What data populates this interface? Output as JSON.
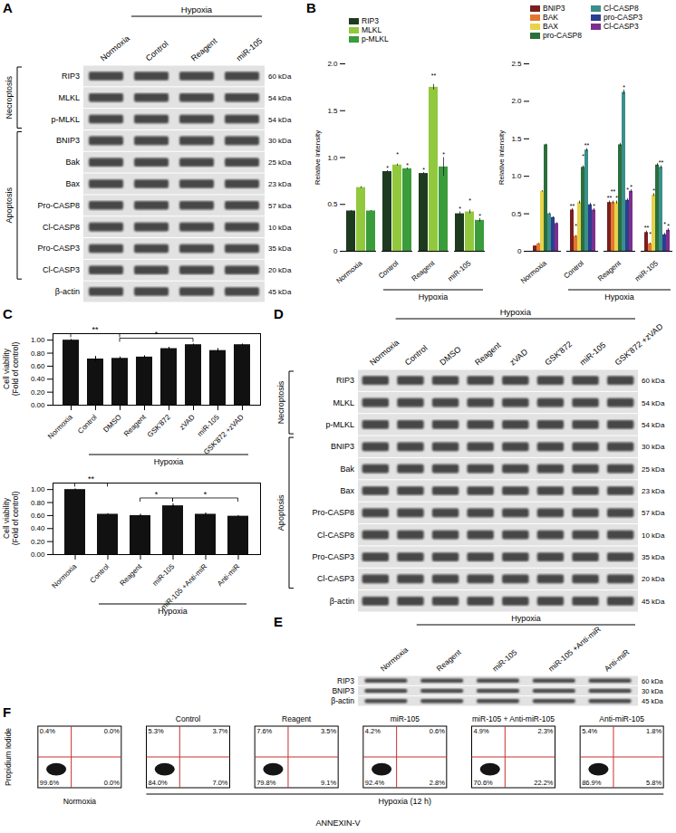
{
  "chart_data": [
    {
      "panel": "B",
      "type": "bar",
      "y_label": "Relative intensity",
      "legend": "top-left",
      "categories": [
        "Normoxia",
        "Control",
        "Reagent",
        "miR-105"
      ],
      "group": {
        "label": "Hypoxia",
        "from": "Control",
        "to": "miR-105"
      },
      "ylim": [
        0,
        2
      ],
      "yticks": [
        0,
        0.5,
        {
          "value": 1,
          "label": "1.0"
        },
        1.5,
        {
          "value": 2,
          "label": "2.0"
        }
      ],
      "series": [
        {
          "name": "RIP3",
          "color": "#1e3b20",
          "values": [
            0.43,
            0.85,
            0.83,
            0.4
          ],
          "errors": [
            0.005,
            0.01,
            0.01,
            0.02
          ],
          "significance": [
            null,
            "*",
            "*",
            "*"
          ]
        },
        {
          "name": "MLKL",
          "color": "#92c83e",
          "values": [
            0.68,
            0.92,
            1.75,
            0.42
          ],
          "errors": [
            0.01,
            0.01,
            0.03,
            0.02
          ],
          "significance": [
            null,
            "*",
            "**",
            "*"
          ]
        },
        {
          "name": "p-MLKL",
          "color": "#3a9c3a",
          "values": [
            0.43,
            0.88,
            0.9,
            0.33
          ],
          "errors": [
            0.005,
            0.01,
            0.1,
            0.02
          ],
          "significance": [
            null,
            "*",
            "*",
            "*"
          ]
        }
      ]
    },
    {
      "type": "bar",
      "y_label": "Relative intensity",
      "legend": "top-left",
      "categories": [
        "Normoxia",
        "Control",
        "Reagent",
        "miR-105"
      ],
      "group": {
        "label": "Hypoxia",
        "from": "Control",
        "to": "miR-105"
      },
      "ylim": [
        0,
        2.5
      ],
      "yticks": [
        0,
        0.5,
        {
          "value": 1,
          "label": "1.0"
        },
        1.5,
        {
          "value": 2,
          "label": "2.0"
        },
        2.5
      ],
      "series": [
        {
          "name": "BNIP3",
          "color": "#7a1f1f",
          "values": [
            0.07,
            0.55,
            0.65,
            0.25
          ],
          "errors": [
            0.005,
            0.02,
            0.02,
            0.02
          ],
          "significance": [
            null,
            "**",
            "**",
            "**"
          ]
        },
        {
          "name": "BAK",
          "color": "#e2762f",
          "values": [
            0.1,
            0.2,
            0.65,
            0.1
          ],
          "errors": [
            0.005,
            0.01,
            0.02,
            0.01
          ],
          "significance": [
            null,
            "*",
            "**",
            "*"
          ]
        },
        {
          "name": "BAX",
          "color": "#e7d24a",
          "values": [
            0.8,
            0.65,
            0.65,
            0.75
          ],
          "errors": [
            0.01,
            0.02,
            0.02,
            0.02
          ],
          "significance": [
            null,
            null,
            "*",
            "*"
          ]
        },
        {
          "name": "pro-CASP8",
          "color": "#2c6e3c",
          "values": [
            1.42,
            1.12,
            1.42,
            1.15
          ],
          "errors": [
            0.01,
            0.02,
            0.02,
            0.02
          ],
          "significance": [
            null,
            "*",
            null,
            null
          ]
        },
        {
          "name": "Cl-CASP8",
          "color": "#3a8f8a",
          "values": [
            0.5,
            1.35,
            2.12,
            1.12
          ],
          "errors": [
            0.01,
            0.02,
            0.03,
            0.02
          ],
          "significance": [
            null,
            "**",
            "*",
            "**"
          ]
        },
        {
          "name": "pro-CASP3",
          "color": "#2a3f8f",
          "values": [
            0.45,
            0.62,
            0.68,
            0.22
          ],
          "errors": [
            0.01,
            0.02,
            0.02,
            0.02
          ],
          "significance": [
            null,
            null,
            "*",
            "*"
          ]
        },
        {
          "name": "Cl-CASP3",
          "color": "#7d2f8e",
          "values": [
            0.37,
            0.55,
            0.8,
            0.28
          ],
          "errors": [
            0.01,
            0.02,
            0.02,
            0.02
          ],
          "significance": [
            null,
            "*",
            "*",
            "*"
          ]
        }
      ]
    },
    {
      "panel": "C",
      "type": "bar",
      "y_label": [
        "Cell viability",
        "(Fold of control)"
      ],
      "color": "#111111",
      "categories": [
        "Normoxia",
        "Control",
        "DMSO",
        "Reagent",
        "GSK'872",
        "zVAD",
        "miR-105",
        "GSK'872 +zVAD"
      ],
      "values": [
        1.0,
        0.71,
        0.72,
        0.74,
        0.87,
        0.93,
        0.84,
        0.93
      ],
      "errors": [
        0.01,
        0.04,
        0.02,
        0.02,
        0.02,
        0.01,
        0.03,
        0.01
      ],
      "group": {
        "label": "Hypoxia",
        "from": "Control",
        "to": "GSK'872 +zVAD"
      },
      "brackets": [
        {
          "from": "Normoxia",
          "to": "DMSO",
          "label": "**"
        },
        {
          "from": "DMSO",
          "to": "zVAD",
          "label": "*"
        }
      ],
      "ylim": [
        0,
        1.1
      ],
      "yticks": [
        {
          "value": 0,
          "label": "0.00"
        },
        {
          "value": 0.2,
          "label": "0.20"
        },
        {
          "value": 0.4,
          "label": "0.40"
        },
        {
          "value": 0.6,
          "label": "0.60"
        },
        {
          "value": 0.8,
          "label": "0.80"
        },
        {
          "value": 1,
          "label": "1.00"
        }
      ]
    },
    {
      "type": "bar",
      "y_label": [
        "Cell viability",
        "(Fold of control)"
      ],
      "color": "#111111",
      "categories": [
        "Normoxia",
        "Control",
        "Reagent",
        "miR-105",
        "miR-105 +Anti-miR",
        "Anti-miR"
      ],
      "values": [
        1.0,
        0.62,
        0.6,
        0.75,
        0.62,
        0.59
      ],
      "errors": [
        0.01,
        0.01,
        0.02,
        0.03,
        0.02,
        0.01
      ],
      "group": {
        "label": "Hypoxia",
        "from": "Control",
        "to": "Anti-miR"
      },
      "brackets": [
        {
          "from": "Normoxia",
          "to": "Control",
          "label": "**"
        },
        {
          "from": "Reagent",
          "to": "miR-105",
          "label": "*"
        },
        {
          "from": "miR-105",
          "to": "Anti-miR",
          "label": "*"
        }
      ],
      "ylim": [
        0,
        1.1
      ],
      "yticks": [
        {
          "value": 0,
          "label": "0.00"
        },
        {
          "value": 0.2,
          "label": "0.20"
        },
        {
          "value": 0.4,
          "label": "0.40"
        },
        {
          "value": 0.6,
          "label": "0.60"
        },
        {
          "value": 0.8,
          "label": "0.80"
        },
        {
          "value": 1,
          "label": "1.00"
        }
      ]
    }
  ],
  "blots": [
    {
      "panel": "A",
      "columns": [
        "Normoxia",
        "Control",
        "Reagent",
        "miR-105"
      ],
      "group": {
        "label": "Hypoxia",
        "from": "Control",
        "to": "miR-105"
      },
      "rows": [
        {
          "name": "RIP3",
          "size": "60 kDa"
        },
        {
          "name": "MLKL",
          "size": "54 kDa"
        },
        {
          "name": "p-MLKL",
          "size": "54 kDa"
        },
        {
          "name": "BNIP3",
          "size": "30 kDa"
        },
        {
          "name": "Bak",
          "size": "25 kDa"
        },
        {
          "name": "Bax",
          "size": "23 kDa"
        },
        {
          "name": "Pro-CASP8",
          "size": "57 kDa"
        },
        {
          "name": "Cl-CASP8",
          "size": "10 kDa"
        },
        {
          "name": "Pro-CASP3",
          "size": "35 kDa"
        },
        {
          "name": "Cl-CASP3",
          "size": "20 kDa"
        },
        {
          "name": "β-actin",
          "size": "45 kDa"
        }
      ],
      "sections": [
        {
          "label": "Necroptosis",
          "from": "RIP3",
          "to": "p-MLKL"
        },
        {
          "label": "Apoptosis",
          "from": "BNIP3",
          "to": "Cl-CASP3"
        }
      ]
    },
    {
      "panel": "D",
      "columns": [
        "Normoxia",
        "Control",
        "DMSO",
        "Reagent",
        "zVAD",
        "GSK'872",
        "miR-105",
        "GSK'872 +zVAD"
      ],
      "group": {
        "label": "Hypoxia",
        "from": "Control",
        "to": "GSK'872 +zVAD"
      },
      "rows": [
        {
          "name": "RIP3",
          "size": "60 kDa"
        },
        {
          "name": "MLKL",
          "size": "54 kDa"
        },
        {
          "name": "p-MLKL",
          "size": "54 kDa"
        },
        {
          "name": "BNIP3",
          "size": "30 kDa"
        },
        {
          "name": "Bak",
          "size": "25 kDa"
        },
        {
          "name": "Bax",
          "size": "23 kDa"
        },
        {
          "name": "Pro-CASP8",
          "size": "57 kDa"
        },
        {
          "name": "Cl-CASP8",
          "size": "10 kDa"
        },
        {
          "name": "Pro-CASP3",
          "size": "35 kDa"
        },
        {
          "name": "Cl-CASP3",
          "size": "20 kDa"
        },
        {
          "name": "β-actin",
          "size": "45 kDa"
        }
      ],
      "sections": [
        {
          "label": "Necroptosis",
          "from": "RIP3",
          "to": "p-MLKL"
        },
        {
          "label": "Apoptosis",
          "from": "BNIP3",
          "to": "Cl-CASP3"
        }
      ]
    },
    {
      "panel": "E",
      "columns": [
        "Normoxia",
        "Reagent",
        "miR-105",
        "miR-105 +Anti-miR",
        "Anti-miR"
      ],
      "group": {
        "label": "Hypoxia",
        "from": "Reagent",
        "to": "Anti-miR"
      },
      "rows": [
        {
          "name": "RIP3",
          "size": "60 kDa"
        },
        {
          "name": "BNIP3",
          "size": "30 kDa"
        },
        {
          "name": "β-actin",
          "size": "45 kDa"
        }
      ],
      "sections": []
    }
  ],
  "flow": {
    "panel": "F",
    "y_label": "Propidium Iodide",
    "x_label": "ANNEXIN-V",
    "group": {
      "label": "Hypoxia (12 h)",
      "from": "Control",
      "to": "Anti-miR-105"
    },
    "samples": [
      {
        "name": "Normoxia",
        "quadrants": {
          "upper_left": {
            "value": 0.4,
            "label": "0.4%"
          },
          "upper_right": {
            "value": 0.0,
            "label": "0.0%"
          },
          "lower_left": {
            "value": 99.6,
            "label": "99.6%"
          },
          "lower_right": {
            "value": 0.0,
            "label": "0.0%"
          }
        }
      },
      {
        "name": "Control",
        "quadrants": {
          "upper_left": {
            "value": 5.3,
            "label": "5.3%"
          },
          "upper_right": {
            "value": 3.7,
            "label": "3.7%"
          },
          "lower_left": {
            "value": 84.0,
            "label": "84.0%"
          },
          "lower_right": {
            "value": 7.0,
            "label": "7.0%"
          }
        }
      },
      {
        "name": "Reagent",
        "quadrants": {
          "upper_left": {
            "value": 7.6,
            "label": "7.6%"
          },
          "upper_right": {
            "value": 3.5,
            "label": "3.5%"
          },
          "lower_left": {
            "value": 79.8,
            "label": "79.8%"
          },
          "lower_right": {
            "value": 9.1,
            "label": "9.1%"
          }
        }
      },
      {
        "name": "miR-105",
        "quadrants": {
          "upper_left": {
            "value": 4.2,
            "label": "4.2%"
          },
          "upper_right": {
            "value": 0.6,
            "label": "0.6%"
          },
          "lower_left": {
            "value": 92.4,
            "label": "92.4%"
          },
          "lower_right": {
            "value": 2.8,
            "label": "2.8%"
          }
        }
      },
      {
        "name": "miR-105 + Anti-miR-105",
        "quadrants": {
          "upper_left": {
            "value": 4.9,
            "label": "4.9%"
          },
          "upper_right": {
            "value": 2.3,
            "label": "2.3%"
          },
          "lower_left": {
            "value": 70.6,
            "label": "70.6%"
          },
          "lower_right": {
            "value": 22.2,
            "label": "22.2%"
          }
        }
      },
      {
        "name": "Anti-miR-105",
        "quadrants": {
          "upper_left": {
            "value": 5.4,
            "label": "5.4%"
          },
          "upper_right": {
            "value": 1.8,
            "label": "1.8%"
          },
          "lower_left": {
            "value": 86.9,
            "label": "86.9%"
          },
          "lower_right": {
            "value": 5.8,
            "label": "5.8%"
          }
        }
      }
    ]
  }
}
